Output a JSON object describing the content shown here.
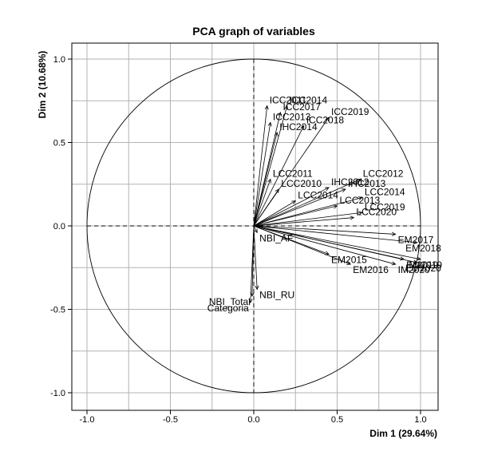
{
  "chart_data": {
    "type": "scatter",
    "title": "PCA graph of variables",
    "xlabel": "Dim 1 (29.64%)",
    "ylabel": "Dim 2 (10.68%)",
    "xlim": [
      -1.0,
      1.0
    ],
    "ylim": [
      -1.0,
      1.0
    ],
    "x_ticks": [
      "-1.0",
      "-0.5",
      "0.0",
      "0.5",
      "1.0"
    ],
    "y_ticks": [
      "-1.0",
      "-0.5",
      "0.0",
      "0.5",
      "1.0"
    ],
    "grid": true,
    "unit_circle": true,
    "variables": [
      {
        "label": "ICC2011",
        "x": 0.08,
        "y": 0.72
      },
      {
        "label": "ICC2014",
        "x": 0.2,
        "y": 0.72
      },
      {
        "label": "ICC2017",
        "x": 0.16,
        "y": 0.68
      },
      {
        "label": "ICC2013",
        "x": 0.1,
        "y": 0.62
      },
      {
        "label": "ICC2019",
        "x": 0.45,
        "y": 0.65
      },
      {
        "label": "ICC2018",
        "x": 0.3,
        "y": 0.6
      },
      {
        "label": "IHC2014",
        "x": 0.14,
        "y": 0.56
      },
      {
        "label": "LCC2011",
        "x": 0.1,
        "y": 0.28
      },
      {
        "label": "LCC2010",
        "x": 0.15,
        "y": 0.22
      },
      {
        "label": "LCC2014",
        "x": 0.25,
        "y": 0.15
      },
      {
        "label": "IHC2012",
        "x": 0.45,
        "y": 0.23
      },
      {
        "label": "IHC2013",
        "x": 0.55,
        "y": 0.22
      },
      {
        "label": "LCC2012",
        "x": 0.64,
        "y": 0.28
      },
      {
        "label": "LCC2014",
        "x": 0.65,
        "y": 0.17
      },
      {
        "label": "LCC2013",
        "x": 0.5,
        "y": 0.12
      },
      {
        "label": "LCC2019",
        "x": 0.65,
        "y": 0.08
      },
      {
        "label": "LCC2020",
        "x": 0.6,
        "y": 0.05
      },
      {
        "label": "NBI_AF",
        "x": 0.02,
        "y": -0.04
      },
      {
        "label": "EM2017",
        "x": 0.85,
        "y": -0.05
      },
      {
        "label": "EM2018",
        "x": 0.98,
        "y": -0.1
      },
      {
        "label": "EM2019",
        "x": 1.0,
        "y": -0.2
      },
      {
        "label": "EM2020",
        "x": 0.98,
        "y": -0.22
      },
      {
        "label": "EM2015",
        "x": 0.45,
        "y": -0.17
      },
      {
        "label": "EM2016",
        "x": 0.58,
        "y": -0.23
      },
      {
        "label": "IM2019",
        "x": 0.9,
        "y": -0.2
      },
      {
        "label": "IM2020",
        "x": 0.85,
        "y": -0.23
      },
      {
        "label": "NBI_RU",
        "x": 0.02,
        "y": -0.38
      },
      {
        "label": "NBI_Total",
        "x": -0.01,
        "y": -0.42
      },
      {
        "label": "Categoria",
        "x": -0.02,
        "y": -0.46
      }
    ]
  }
}
